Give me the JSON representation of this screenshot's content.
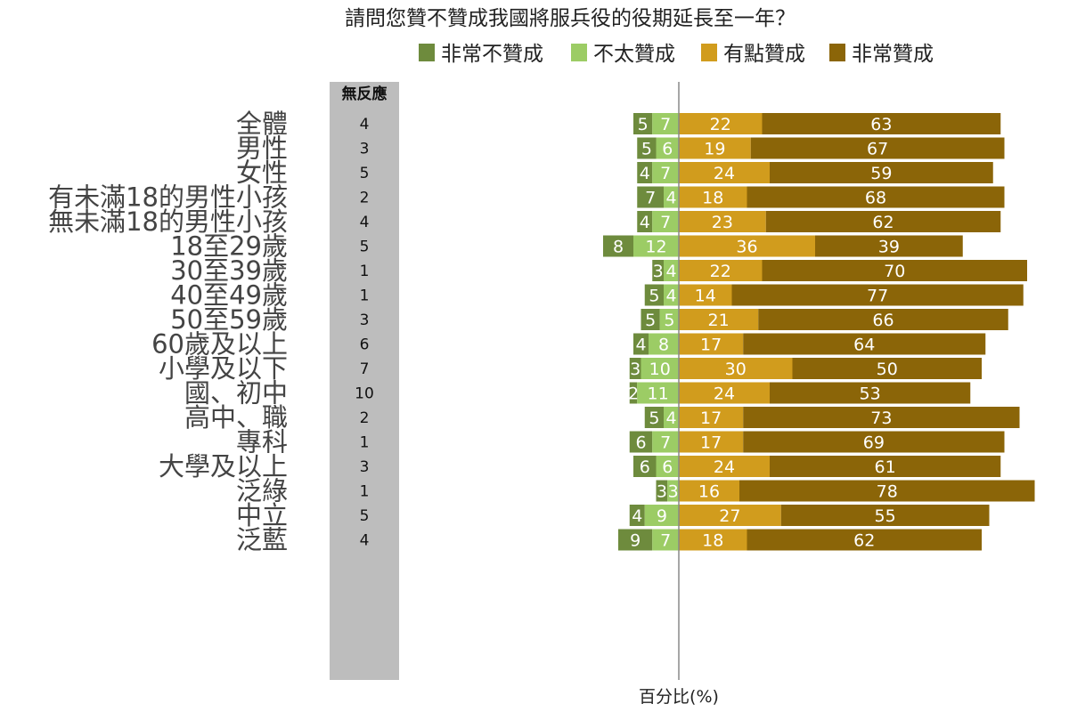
{
  "chart_data": {
    "type": "bar",
    "orientation": "horizontal",
    "stacked": "diverging",
    "title": "請問您贊不贊成我國將服兵役的役期延長至一年？",
    "xlabel": "百分比(%)",
    "no_response_header": "無反應",
    "legend_position": "top",
    "series": [
      {
        "name": "非常不贊成",
        "color": "#6e8b3d",
        "side": "left"
      },
      {
        "name": "不太贊成",
        "color": "#9ccc65",
        "side": "left"
      },
      {
        "name": "有點贊成",
        "color": "#d19c1d",
        "side": "right"
      },
      {
        "name": "非常贊成",
        "color": "#8b6508",
        "side": "right"
      }
    ],
    "groups": [
      {
        "rows": [
          {
            "label": "全體",
            "values": [
              5,
              7,
              22,
              63
            ],
            "no_response": "4"
          }
        ]
      },
      {
        "rows": [
          {
            "label": "男性",
            "values": [
              5,
              6,
              19,
              67
            ],
            "no_response": "3"
          },
          {
            "label": "女性",
            "values": [
              4,
              7,
              24,
              59
            ],
            "no_response": "5"
          }
        ]
      },
      {
        "rows": [
          {
            "label": "有未滿18的男性小孩",
            "values": [
              7,
              4,
              18,
              68
            ],
            "no_response": "2"
          },
          {
            "label": "無未滿18的男性小孩",
            "values": [
              4,
              7,
              23,
              62
            ],
            "no_response": "4"
          }
        ]
      },
      {
        "rows": [
          {
            "label": "18至29歲",
            "values": [
              8,
              12,
              36,
              39
            ],
            "no_response": "5"
          },
          {
            "label": "30至39歲",
            "values": [
              3,
              4,
              22,
              70
            ],
            "no_response": "1"
          },
          {
            "label": "40至49歲",
            "values": [
              5,
              4,
              14,
              77
            ],
            "no_response": "1"
          },
          {
            "label": "50至59歲",
            "values": [
              5,
              5,
              21,
              66
            ],
            "no_response": "3"
          },
          {
            "label": "60歲及以上",
            "values": [
              4,
              8,
              17,
              64
            ],
            "no_response": "6"
          }
        ]
      },
      {
        "rows": [
          {
            "label": "小學及以下",
            "values": [
              3,
              10,
              30,
              50
            ],
            "no_response": "7"
          },
          {
            "label": "國、初中",
            "values": [
              2,
              11,
              24,
              53
            ],
            "no_response": "10"
          },
          {
            "label": "高中、職",
            "values": [
              5,
              4,
              17,
              73
            ],
            "no_response": "2"
          },
          {
            "label": "專科",
            "values": [
              6,
              7,
              17,
              69
            ],
            "no_response": "1"
          },
          {
            "label": "大學及以上",
            "values": [
              6,
              6,
              24,
              61
            ],
            "no_response": "3"
          }
        ]
      },
      {
        "rows": [
          {
            "label": "泛綠",
            "values": [
              3,
              3,
              16,
              78
            ],
            "no_response": "1"
          },
          {
            "label": "中立",
            "values": [
              4,
              9,
              27,
              55
            ],
            "no_response": "5"
          },
          {
            "label": "泛藍",
            "values": [
              9,
              7,
              18,
              62
            ],
            "no_response": "4"
          }
        ]
      }
    ]
  }
}
